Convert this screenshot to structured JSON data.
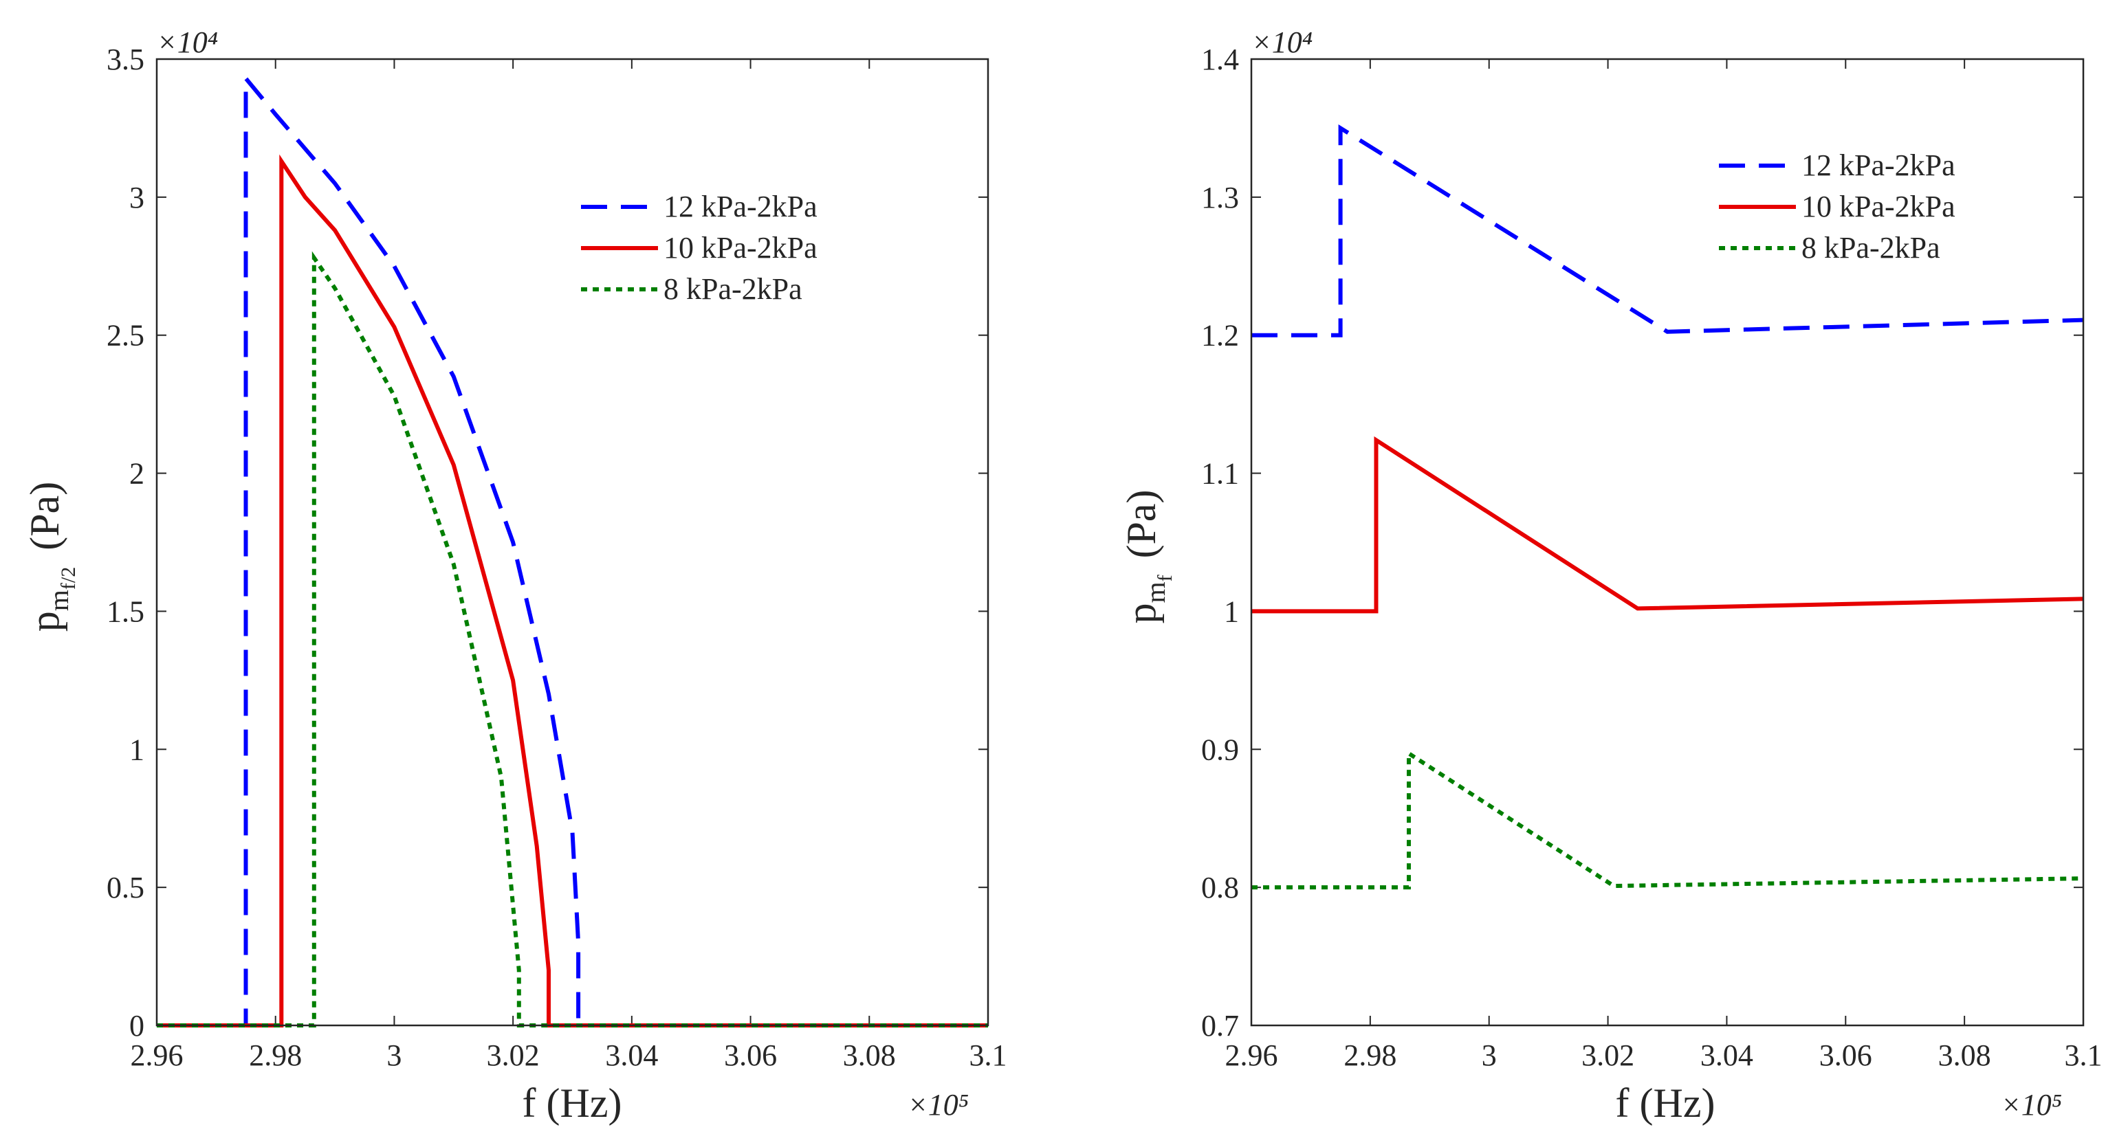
{
  "chart_data": [
    {
      "type": "line",
      "xlabel": "f (Hz)",
      "ylabel": {
        "main": "p",
        "sub": "m",
        "subsub": "f/2",
        "unit": "(Pa)"
      },
      "x_exponent": "×10⁵",
      "y_exponent": "×10⁴",
      "xlim": [
        2.96,
        3.1
      ],
      "ylim": [
        0,
        3.5
      ],
      "xticks": [
        "2.96",
        "2.98",
        "3",
        "3.02",
        "3.04",
        "3.06",
        "3.08",
        "3.1"
      ],
      "yticks": [
        "0",
        "0.5",
        "1",
        "1.5",
        "2",
        "2.5",
        "3",
        "3.5"
      ],
      "legend_position": "upper-right",
      "series": [
        {
          "name": "12 kPa-2kPa",
          "color": "#0000ff",
          "style": "dashed",
          "x": [
            2.96,
            2.975,
            2.975,
            2.98,
            2.99,
            3.0,
            3.01,
            3.02,
            3.026,
            3.03,
            3.031,
            3.031,
            3.1
          ],
          "y": [
            0,
            0,
            3.43,
            3.3,
            3.05,
            2.75,
            2.35,
            1.75,
            1.2,
            0.7,
            0.3,
            0,
            0
          ]
        },
        {
          "name": "10 kPa-2kPa",
          "color": "#e60000",
          "style": "solid",
          "x": [
            2.96,
            2.981,
            2.981,
            2.985,
            2.99,
            3.0,
            3.01,
            3.02,
            3.024,
            3.026,
            3.026,
            3.1
          ],
          "y": [
            0,
            0,
            3.13,
            3.0,
            2.88,
            2.53,
            2.03,
            1.25,
            0.65,
            0.2,
            0,
            0
          ]
        },
        {
          "name": "8 kPa-2kPa",
          "color": "#007f00",
          "style": "dotted",
          "x": [
            2.96,
            2.9865,
            2.9865,
            2.99,
            3.0,
            3.01,
            3.018,
            3.021,
            3.021,
            3.1
          ],
          "y": [
            0,
            0,
            2.78,
            2.67,
            2.28,
            1.67,
            0.9,
            0.2,
            0,
            0
          ]
        }
      ]
    },
    {
      "type": "line",
      "xlabel": "f (Hz)",
      "ylabel": {
        "main": "p",
        "sub": "m",
        "subsub": "f",
        "unit": "(Pa)"
      },
      "x_exponent": "×10⁵",
      "y_exponent": "×10⁴",
      "xlim": [
        2.96,
        3.1
      ],
      "ylim": [
        0.7,
        1.4
      ],
      "xticks": [
        "2.96",
        "2.98",
        "3",
        "3.02",
        "3.04",
        "3.06",
        "3.08",
        "3.1"
      ],
      "yticks": [
        "0.7",
        "0.8",
        "0.9",
        "1",
        "1.1",
        "1.2",
        "1.3",
        "1.4"
      ],
      "legend_position": "upper-right",
      "series": [
        {
          "name": "12 kPa-2kPa",
          "color": "#0000ff",
          "style": "dashed",
          "x": [
            2.96,
            2.975,
            2.975,
            3.03,
            3.1
          ],
          "y": [
            1.2,
            1.2,
            1.35,
            1.2025,
            1.211
          ]
        },
        {
          "name": "10 kPa-2kPa",
          "color": "#e60000",
          "style": "solid",
          "x": [
            2.96,
            2.981,
            2.981,
            3.025,
            3.1
          ],
          "y": [
            1.0,
            1.0,
            1.124,
            1.002,
            1.009
          ]
        },
        {
          "name": "8 kPa-2kPa",
          "color": "#007f00",
          "style": "dotted",
          "x": [
            2.96,
            2.9865,
            2.9865,
            3.021,
            3.1
          ],
          "y": [
            0.8,
            0.8,
            0.897,
            0.801,
            0.8065
          ]
        }
      ]
    }
  ]
}
